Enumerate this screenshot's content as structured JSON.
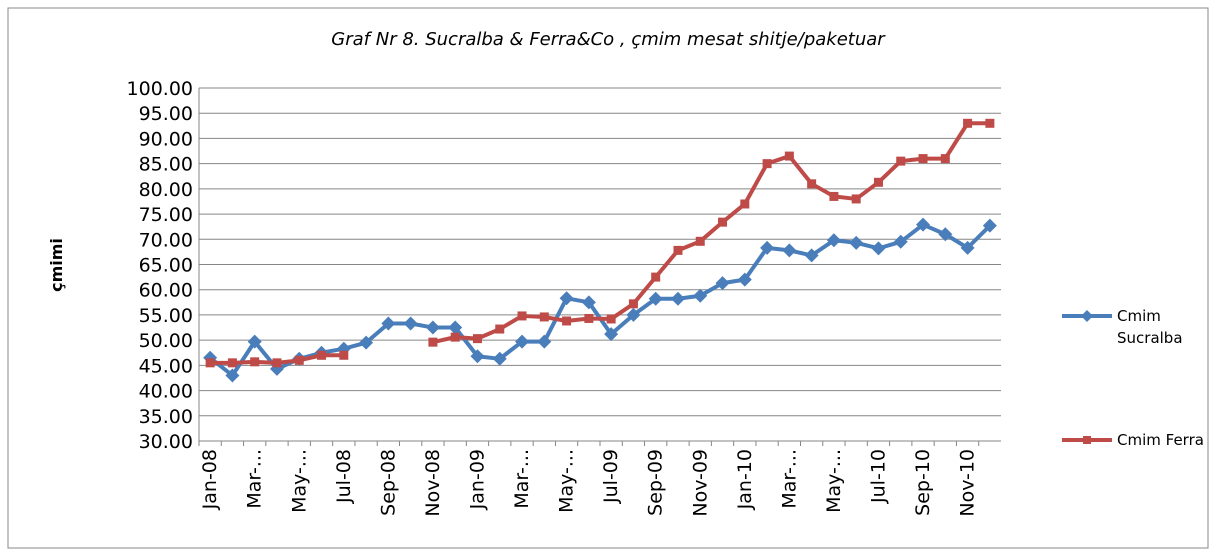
{
  "chart_data": {
    "type": "line",
    "title": "Graf Nr 8. Sucralba & Ferra&Co , çmim mesat shitje/paketuar",
    "y_label": "çmimi",
    "categories": [
      "Jan-08",
      null,
      "Mar-...",
      null,
      "May-...",
      null,
      "Jul-08",
      null,
      "Sep-08",
      null,
      "Nov-08",
      null,
      "Jan-09",
      null,
      "Mar-...",
      null,
      "May-...",
      null,
      "Jul-09",
      null,
      "Sep-09",
      null,
      "Nov-09",
      null,
      "Jan-10",
      null,
      "Mar-...",
      null,
      "May-...",
      null,
      "Jul-10",
      null,
      "Sep-10",
      null,
      "Nov-10",
      null
    ],
    "series": [
      {
        "name": "Cmim Sucralba",
        "color": "#4a7ebb",
        "values": [
          46.5,
          43,
          49.7,
          44.3,
          46.3,
          47.5,
          48.3,
          49.5,
          53.3,
          53.3,
          52.5,
          52.5,
          46.8,
          46.3,
          49.7,
          49.7,
          58.3,
          57.5,
          51.2,
          55,
          58.2,
          58.2,
          58.8,
          61.3,
          62,
          68.3,
          67.8,
          66.8,
          69.8,
          69.3,
          68.2,
          69.5,
          72.9,
          71,
          68.3,
          72.7
        ]
      },
      {
        "name": "Cmim Ferra",
        "color": "#be4b48",
        "values": [
          45.5,
          45.5,
          45.7,
          45.5,
          46,
          47,
          47,
          null,
          null,
          null,
          49.6,
          50.6,
          50.3,
          52.2,
          54.8,
          54.6,
          53.8,
          54.3,
          54.2,
          57.2,
          62.5,
          67.8,
          69.6,
          73.4,
          77,
          85,
          86.5,
          81,
          78.5,
          78,
          81.3,
          85.5,
          86,
          86,
          93,
          93
        ]
      }
    ],
    "ylim": [
      30,
      100
    ],
    "yticks": [
      {
        "value": 30,
        "label": "30.00"
      },
      {
        "value": 35,
        "label": "35.00"
      },
      {
        "value": 40,
        "label": "40.00"
      },
      {
        "value": 45,
        "label": "45.00"
      },
      {
        "value": 50,
        "label": "50.00"
      },
      {
        "value": 55,
        "label": "55.00"
      },
      {
        "value": 60,
        "label": "60.00"
      },
      {
        "value": 65,
        "label": "65.00"
      },
      {
        "value": 70,
        "label": "70.00"
      },
      {
        "value": 75,
        "label": "75.00"
      },
      {
        "value": 80,
        "label": "80.00"
      },
      {
        "value": 85,
        "label": "85.00"
      },
      {
        "value": 90,
        "label": "90.00"
      },
      {
        "value": 95,
        "label": "95.00"
      },
      {
        "value": 100,
        "label": "100.00"
      }
    ],
    "grid": true,
    "legend": "right"
  }
}
